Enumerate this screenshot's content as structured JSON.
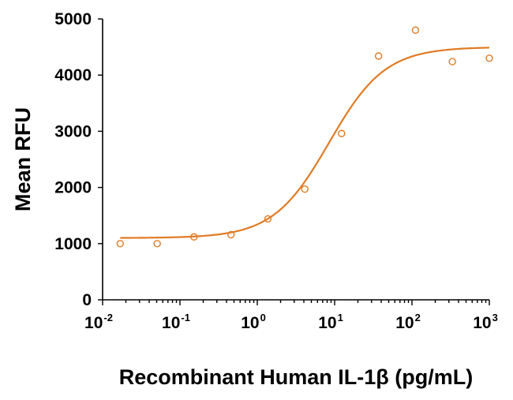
{
  "chart_data": {
    "type": "scatter",
    "title": "",
    "xlabel": "Recombinant Human IL-1β (pg/mL)",
    "ylabel": "Mean RFU",
    "x_scale": "log",
    "xlim": [
      0.01,
      1000
    ],
    "ylim": [
      0,
      5000
    ],
    "y_ticks": [
      "0",
      "1000",
      "2000",
      "3000",
      "4000",
      "5000"
    ],
    "x_ticks": [
      {
        "base": "10",
        "exp": "-2"
      },
      {
        "base": "10",
        "exp": "-1"
      },
      {
        "base": "10",
        "exp": "0"
      },
      {
        "base": "10",
        "exp": "1"
      },
      {
        "base": "10",
        "exp": "2"
      },
      {
        "base": "10",
        "exp": "3"
      }
    ],
    "grid": false,
    "color": "#e07b24",
    "points": {
      "x": [
        0.0169,
        0.0508,
        0.152,
        0.457,
        1.37,
        4.12,
        12.3,
        37.0,
        111,
        333,
        1000
      ],
      "y": [
        1000,
        1000,
        1120,
        1160,
        1440,
        1970,
        2960,
        4340,
        4800,
        4240,
        4300
      ]
    },
    "fit_curve": {
      "model": "4PL",
      "bottom": 1100,
      "top": 4500,
      "ec50": 8.5,
      "hill": 1.2
    }
  }
}
